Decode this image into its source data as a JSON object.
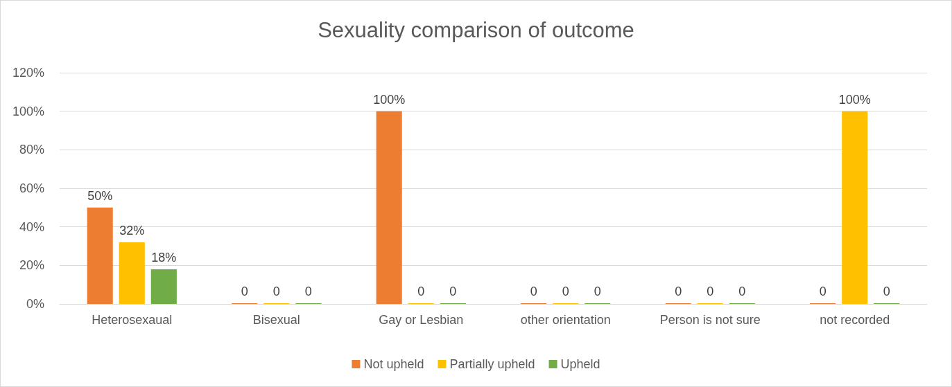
{
  "chart_data": {
    "type": "bar",
    "title": "Sexuality comparison of outcome",
    "categories": [
      "Heterosexaual",
      "Bisexual",
      "Gay or Lesbian",
      "other orientation",
      "Person is not sure",
      "not recorded"
    ],
    "series": [
      {
        "name": "Not upheld",
        "color": "#ed7d31",
        "values": [
          50,
          0,
          100,
          0,
          0,
          0
        ],
        "value_labels": [
          "50%",
          "0",
          "100%",
          "0",
          "0",
          "0"
        ]
      },
      {
        "name": "Partially upheld",
        "color": "#ffc000",
        "values": [
          32,
          0,
          0,
          0,
          0,
          100
        ],
        "value_labels": [
          "32%",
          "0",
          "0",
          "0",
          "0",
          "100%"
        ]
      },
      {
        "name": "Upheld",
        "color": "#70ad47",
        "values": [
          18,
          0,
          0,
          0,
          0,
          0
        ],
        "value_labels": [
          "18%",
          "0",
          "0",
          "0",
          "0",
          "0"
        ]
      }
    ],
    "ylim": [
      0,
      120
    ],
    "yticks": [
      {
        "value": 0,
        "label": "0%"
      },
      {
        "value": 20,
        "label": "20%"
      },
      {
        "value": 40,
        "label": "40%"
      },
      {
        "value": 60,
        "label": "60%"
      },
      {
        "value": 80,
        "label": "80%"
      },
      {
        "value": 100,
        "label": "100%"
      },
      {
        "value": 120,
        "label": "120%"
      }
    ],
    "grid": "y",
    "legend": "bottom"
  }
}
